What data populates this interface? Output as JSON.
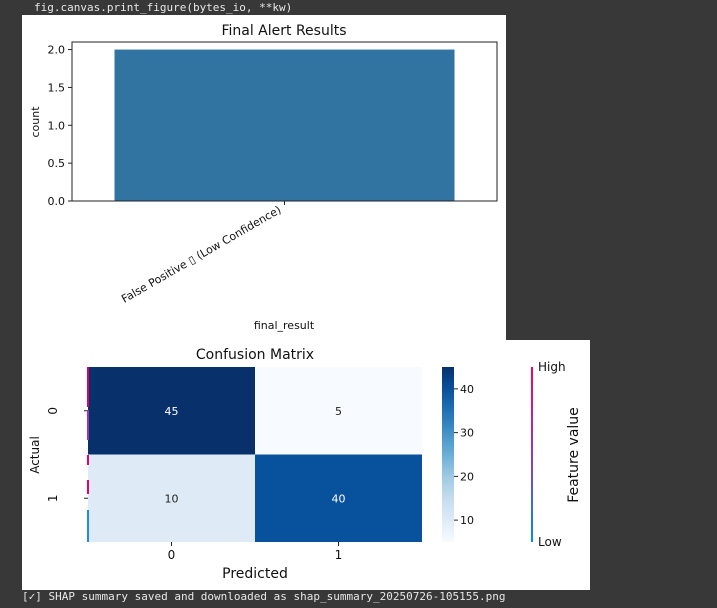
{
  "output": {
    "code_line": "fig.canvas.print_figure(bytes_io, **kw)",
    "status_line": "[✓] SHAP summary saved and downloaded as shap_summary_20250726-105155.png"
  },
  "chart_data": [
    {
      "type": "bar",
      "title": "Final Alert Results",
      "xlabel": "final_result",
      "ylabel": "count",
      "categories": [
        "False Positive ▯ (Low Confidence)"
      ],
      "values": [
        2
      ],
      "ylim": [
        0,
        2.1
      ],
      "yticks": [
        0.0,
        0.5,
        1.0,
        1.5,
        2.0
      ],
      "ytick_labels": [
        "0.0",
        "0.5",
        "1.0",
        "1.5",
        "2.0"
      ],
      "bar_color": "#3274a1"
    },
    {
      "type": "heatmap",
      "title": "Confusion Matrix",
      "xlabel": "Predicted",
      "ylabel": "Actual",
      "x_categories": [
        "0",
        "1"
      ],
      "y_categories": [
        "0",
        "1"
      ],
      "values": [
        [
          45,
          5
        ],
        [
          10,
          40
        ]
      ],
      "colormap": "Blues",
      "colorbar_range": [
        5,
        45
      ],
      "colorbar_ticks": [
        10,
        20,
        30,
        40
      ],
      "colors": {
        "low": "#f7fbff",
        "high": "#08306b"
      }
    },
    {
      "type": "colorbar",
      "label": "Feature value",
      "high_label": "High",
      "low_label": "Low",
      "colors": {
        "high": "#ff0052",
        "low": "#008bfb"
      }
    }
  ]
}
